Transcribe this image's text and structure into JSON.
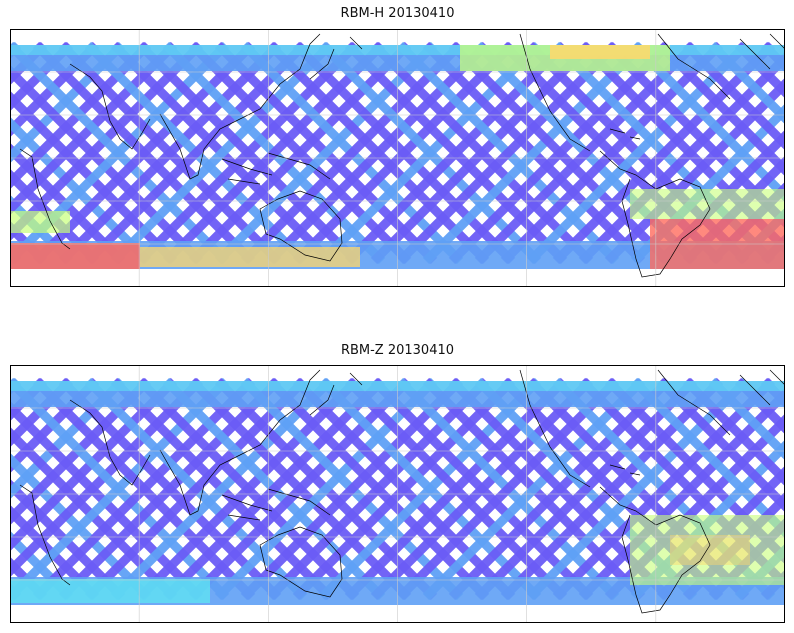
{
  "panels": [
    {
      "id": "top",
      "title": "RBM-H 20130410",
      "variant": "H",
      "colormap": "jet",
      "map_projection": "equirectangular",
      "central_longitude": "Pacific",
      "gridlines": true,
      "hotspots": [
        "south-atlantic",
        "southern-indian-ocean",
        "north-pacific-east"
      ]
    },
    {
      "id": "bottom",
      "title": "RBM-Z 20130410",
      "variant": "Z",
      "colormap": "jet",
      "map_projection": "equirectangular",
      "central_longitude": "Pacific",
      "gridlines": true,
      "hotspots": [
        "south-america-southern"
      ]
    }
  ],
  "colors": {
    "low": "#6a5cf6",
    "mid_low": "#5fa0f5",
    "mid": "#5ee7f2",
    "mid_high": "#c8ff7a",
    "high": "#ffd86b",
    "max": "#ff6b5e",
    "coastline": "#000000",
    "grid": "#cccccc",
    "frame": "#000000"
  }
}
